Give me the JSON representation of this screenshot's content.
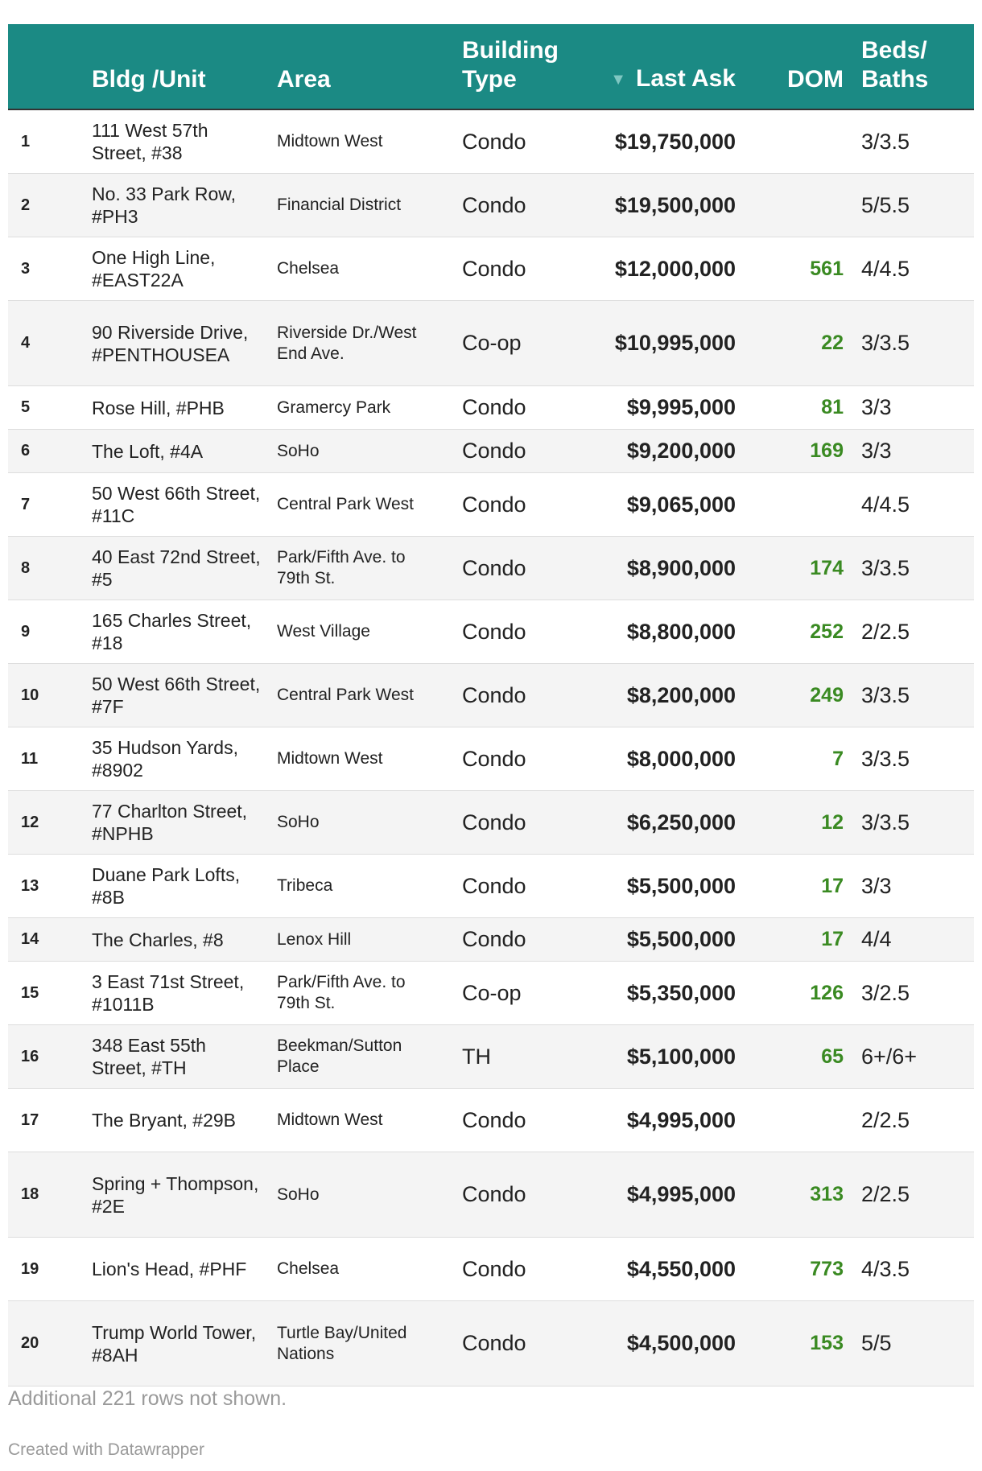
{
  "chart_data": {
    "type": "table",
    "columns": [
      "",
      "Bldg /Unit",
      "Area",
      "Building Type",
      "Last Ask",
      "DOM",
      "Beds/ Baths"
    ],
    "sort_column": "Last Ask",
    "sort_indicator": "▼",
    "rows": [
      {
        "rank": "1",
        "bldg": "111 West 57th Street, #38",
        "area": "Midtown West",
        "type": "Condo",
        "ask": "$19,750,000",
        "dom": "",
        "beds": "3/3.5"
      },
      {
        "rank": "2",
        "bldg": "No. 33 Park Row, #PH3",
        "area": "Financial District",
        "type": "Condo",
        "ask": "$19,500,000",
        "dom": "",
        "beds": "5/5.5"
      },
      {
        "rank": "3",
        "bldg": "One High Line, #EAST22A",
        "area": "Chelsea",
        "type": "Condo",
        "ask": "$12,000,000",
        "dom": "561",
        "beds": "4/4.5"
      },
      {
        "rank": "4",
        "bldg": "90 Riverside Drive, #PENTHOUSEA",
        "area": "Riverside Dr./West End Ave.",
        "type": "Co-op",
        "ask": "$10,995,000",
        "dom": "22",
        "beds": "3/3.5"
      },
      {
        "rank": "5",
        "bldg": "Rose Hill, #PHB",
        "area": "Gramercy Park",
        "type": "Condo",
        "ask": "$9,995,000",
        "dom": "81",
        "beds": "3/3"
      },
      {
        "rank": "6",
        "bldg": "The Loft, #4A",
        "area": "SoHo",
        "type": "Condo",
        "ask": "$9,200,000",
        "dom": "169",
        "beds": "3/3"
      },
      {
        "rank": "7",
        "bldg": "50 West 66th Street, #11C",
        "area": "Central Park West",
        "type": "Condo",
        "ask": "$9,065,000",
        "dom": "",
        "beds": "4/4.5"
      },
      {
        "rank": "8",
        "bldg": "40 East 72nd Street, #5",
        "area": "Park/Fifth Ave. to 79th St.",
        "type": "Condo",
        "ask": "$8,900,000",
        "dom": "174",
        "beds": "3/3.5"
      },
      {
        "rank": "9",
        "bldg": "165 Charles Street, #18",
        "area": "West Village",
        "type": "Condo",
        "ask": "$8,800,000",
        "dom": "252",
        "beds": "2/2.5"
      },
      {
        "rank": "10",
        "bldg": "50 West 66th Street, #7F",
        "area": "Central Park West",
        "type": "Condo",
        "ask": "$8,200,000",
        "dom": "249",
        "beds": "3/3.5"
      },
      {
        "rank": "11",
        "bldg": "35 Hudson Yards, #8902",
        "area": "Midtown West",
        "type": "Condo",
        "ask": "$8,000,000",
        "dom": "7",
        "beds": "3/3.5"
      },
      {
        "rank": "12",
        "bldg": "77 Charlton Street, #NPHB",
        "area": "SoHo",
        "type": "Condo",
        "ask": "$6,250,000",
        "dom": "12",
        "beds": "3/3.5"
      },
      {
        "rank": "13",
        "bldg": "Duane Park Lofts, #8B",
        "area": "Tribeca",
        "type": "Condo",
        "ask": "$5,500,000",
        "dom": "17",
        "beds": "3/3"
      },
      {
        "rank": "14",
        "bldg": "The Charles, #8",
        "area": "Lenox Hill",
        "type": "Condo",
        "ask": "$5,500,000",
        "dom": "17",
        "beds": "4/4"
      },
      {
        "rank": "15",
        "bldg": "3 East 71st Street, #1011B",
        "area": "Park/Fifth Ave. to 79th St.",
        "type": "Co-op",
        "ask": "$5,350,000",
        "dom": "126",
        "beds": "3/2.5"
      },
      {
        "rank": "16",
        "bldg": "348 East 55th Street, #TH",
        "area": "Beekman/Sutton Place",
        "type": "TH",
        "ask": "$5,100,000",
        "dom": "65",
        "beds": "6+/6+"
      },
      {
        "rank": "17",
        "bldg": "The Bryant, #29B",
        "area": "Midtown West",
        "type": "Condo",
        "ask": "$4,995,000",
        "dom": "",
        "beds": "2/2.5"
      },
      {
        "rank": "18",
        "bldg": "Spring + Thompson, #2E",
        "area": "SoHo",
        "type": "Condo",
        "ask": "$4,995,000",
        "dom": "313",
        "beds": "2/2.5"
      },
      {
        "rank": "19",
        "bldg": "Lion's Head, #PHF",
        "area": "Chelsea",
        "type": "Condo",
        "ask": "$4,550,000",
        "dom": "773",
        "beds": "4/3.5"
      },
      {
        "rank": "20",
        "bldg": "Trump World Tower, #8AH",
        "area": "Turtle Bay/United Nations",
        "type": "Condo",
        "ask": "$4,500,000",
        "dom": "153",
        "beds": "5/5"
      }
    ]
  },
  "footnote": "Additional 221 rows not shown.",
  "credit": "Created with Datawrapper",
  "colors": {
    "header_bg": "#1b8a84",
    "dom_text": "#3a8a22",
    "stripe": "#f4f4f4"
  }
}
